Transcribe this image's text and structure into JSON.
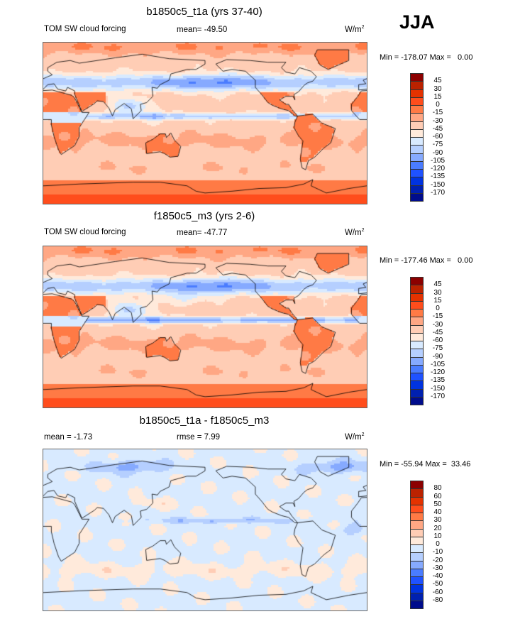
{
  "season": "JJA",
  "panels": [
    {
      "title": "b1850c5_t1a (yrs 37-40)",
      "left_label": "TOM SW cloud forcing",
      "center_label": "mean= -49.50",
      "units": "W/m",
      "units_sup": "2",
      "minmax": "Min = -178.07 Max =   0.00",
      "colorbar": "abs"
    },
    {
      "title": "f1850c5_m3 (yrs 2-6)",
      "left_label": "TOM SW cloud forcing",
      "center_label": "mean= -47.77",
      "units": "W/m",
      "units_sup": "2",
      "minmax": "Min = -177.46 Max =   0.00",
      "colorbar": "abs"
    },
    {
      "title": "b1850c5_t1a - f1850c5_m3",
      "left_label": "mean =  -1.73",
      "center_label": "rmse =   7.99",
      "units": "W/m",
      "units_sup": "2",
      "minmax": "Min = -55.94 Max =  33.46",
      "colorbar": "diff"
    }
  ],
  "colorbars": {
    "abs": {
      "levels": [
        "45",
        "30",
        "15",
        "0",
        "-15",
        "-30",
        "-45",
        "-60",
        "-75",
        "-90",
        "-105",
        "-120",
        "-135",
        "-150",
        "-170"
      ]
    },
    "diff": {
      "levels": [
        "80",
        "60",
        "50",
        "40",
        "30",
        "20",
        "10",
        "0",
        "-10",
        "-20",
        "-30",
        "-40",
        "-50",
        "-60",
        "-80"
      ]
    }
  },
  "colors": [
    "#8c0000",
    "#bb2200",
    "#e43200",
    "#ff4d1c",
    "#ff7a45",
    "#ffa784",
    "#ffcdb5",
    "#ffeadb",
    "#d8eaff",
    "#b5cfff",
    "#86aaff",
    "#4a7cff",
    "#1f52ff",
    "#0033e0",
    "#0020b0",
    "#000c8c"
  ]
}
